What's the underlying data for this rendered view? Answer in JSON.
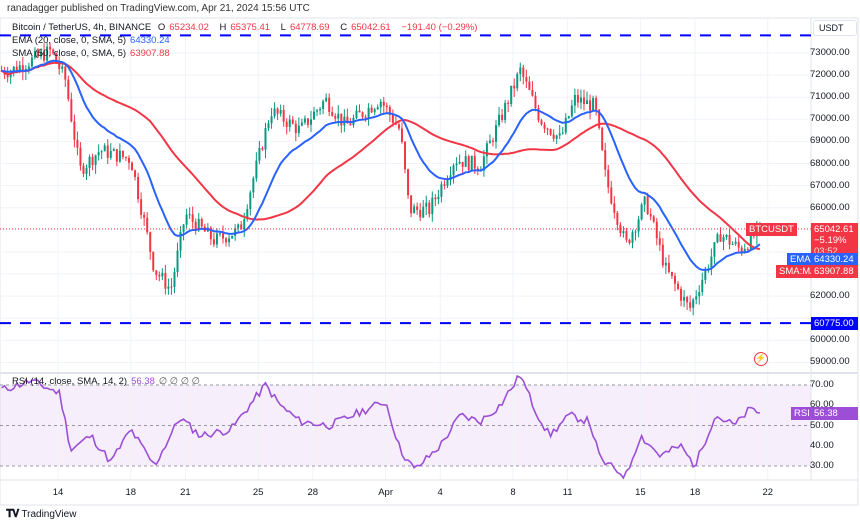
{
  "publisher_line": "ranadagger published on TradingView.com, Apr 21, 2024 15:56 UTC",
  "symbol": {
    "title": "Bitcoin / TetherUS, 4h, BINANCE",
    "o_label": "O",
    "o": "65234.02",
    "h_label": "H",
    "h": "65375.41",
    "l_label": "L",
    "l": "64778.69",
    "c_label": "C",
    "c": "65042.61",
    "change": "−191.40 (−0.29%)"
  },
  "ema_legend": {
    "label": "EMA (20, close, 0, SMA, 5)",
    "value": "64330.24"
  },
  "sma_legend": {
    "label": "SMA (50, close, 0, SMA, 5)",
    "value": "63907.88"
  },
  "rsi_legend": {
    "label": "RSI (14, close, SMA, 14, 2)",
    "value": "56.38",
    "extras": "∅ ∅ ∅ ∅"
  },
  "currency_button": "USDT",
  "price_axis": [
    "73000.00",
    "72000.00",
    "71000.00",
    "70000.00",
    "69000.00",
    "68000.00",
    "67000.00",
    "66000.00",
    "62000.00",
    "60000.00",
    "59000.00"
  ],
  "price_axis_values": [
    73000,
    72000,
    71000,
    70000,
    69000,
    68000,
    67000,
    66000,
    62000,
    60000,
    59000
  ],
  "tags": {
    "btc_name": "BTCUSDT",
    "btc_price": "65042.61",
    "btc_change": "−5.19%",
    "btc_timer": "03:52",
    "ema_name": "EMA",
    "ema_price": "64330.24",
    "sma_name": "SMA:MA",
    "sma_price": "63907.88",
    "support": "60775.00",
    "rsi_name": "RSI",
    "rsi_value": "56.38"
  },
  "rsi_axis": [
    "70.00",
    "60.00",
    "50.00",
    "40.00",
    "30.00"
  ],
  "time_axis": [
    {
      "label": "14",
      "day": 0
    },
    {
      "label": "18",
      "day": 4
    },
    {
      "label": "21",
      "day": 7
    },
    {
      "label": "25",
      "day": 11
    },
    {
      "label": "28",
      "day": 14
    },
    {
      "label": "Apr",
      "day": 18
    },
    {
      "label": "4",
      "day": 21
    },
    {
      "label": "8",
      "day": 25
    },
    {
      "label": "11",
      "day": 28
    },
    {
      "label": "15",
      "day": 32
    },
    {
      "label": "18",
      "day": 35
    },
    {
      "label": "22",
      "day": 39
    }
  ],
  "colors": {
    "up": "#089981",
    "down": "#f23645",
    "ema": "#2962ff",
    "sma": "#f23645",
    "rsi": "#9c4fd6",
    "level": "#0000ff"
  },
  "chart_data": {
    "type": "candlestick",
    "title": "Bitcoin / TetherUS, 4h, BINANCE",
    "day_origin": "Mar 14",
    "horizontal_levels": [
      73800,
      60775
    ],
    "price_keypoints": [
      [
        -2.6,
        72200
      ],
      [
        -0.4,
        73100
      ],
      [
        0.4,
        71800
      ],
      [
        1.2,
        67700
      ],
      [
        2.3,
        68600
      ],
      [
        4.0,
        68200
      ],
      [
        5.3,
        63200
      ],
      [
        6.2,
        62300
      ],
      [
        7.0,
        65700
      ],
      [
        8.6,
        64500
      ],
      [
        10.0,
        65000
      ],
      [
        11.7,
        70400
      ],
      [
        13.3,
        69500
      ],
      [
        14.7,
        70900
      ],
      [
        15.8,
        69700
      ],
      [
        17.7,
        70900
      ],
      [
        18.8,
        69500
      ],
      [
        19.3,
        65900
      ],
      [
        20.4,
        65900
      ],
      [
        21.8,
        68200
      ],
      [
        23.2,
        67900
      ],
      [
        24.3,
        70000
      ],
      [
        25.4,
        72200
      ],
      [
        26.5,
        70000
      ],
      [
        27.6,
        69100
      ],
      [
        28.4,
        70900
      ],
      [
        29.5,
        70600
      ],
      [
        30.1,
        67300
      ],
      [
        31.2,
        64300
      ],
      [
        32.3,
        66300
      ],
      [
        33.4,
        63200
      ],
      [
        34.7,
        61400
      ],
      [
        35.6,
        63200
      ],
      [
        36.4,
        64800
      ],
      [
        37.5,
        64100
      ],
      [
        38.6,
        65042.61
      ]
    ],
    "rsi_keypoints": [
      [
        -2.9,
        68
      ],
      [
        -1.5,
        72
      ],
      [
        0.1,
        66
      ],
      [
        0.7,
        38
      ],
      [
        1.8,
        45
      ],
      [
        2.9,
        32
      ],
      [
        4.0,
        48
      ],
      [
        5.3,
        30
      ],
      [
        6.7,
        54
      ],
      [
        7.8,
        45
      ],
      [
        9.5,
        48
      ],
      [
        11.4,
        70
      ],
      [
        12.2,
        60
      ],
      [
        13.3,
        52
      ],
      [
        14.9,
        50
      ],
      [
        18.0,
        62
      ],
      [
        18.8,
        38
      ],
      [
        19.6,
        28
      ],
      [
        21.0,
        40
      ],
      [
        22.1,
        55
      ],
      [
        23.2,
        52
      ],
      [
        24.3,
        60
      ],
      [
        25.4,
        75
      ],
      [
        26.2,
        58
      ],
      [
        27.0,
        45
      ],
      [
        28.1,
        55
      ],
      [
        29.2,
        52
      ],
      [
        29.8,
        33
      ],
      [
        31.2,
        25
      ],
      [
        32.0,
        45
      ],
      [
        33.1,
        35
      ],
      [
        34.2,
        40
      ],
      [
        35.0,
        30
      ],
      [
        36.1,
        55
      ],
      [
        37.2,
        50
      ],
      [
        38.0,
        58
      ],
      [
        38.6,
        56.38
      ]
    ],
    "rsi_bands": [
      30,
      70
    ]
  }
}
